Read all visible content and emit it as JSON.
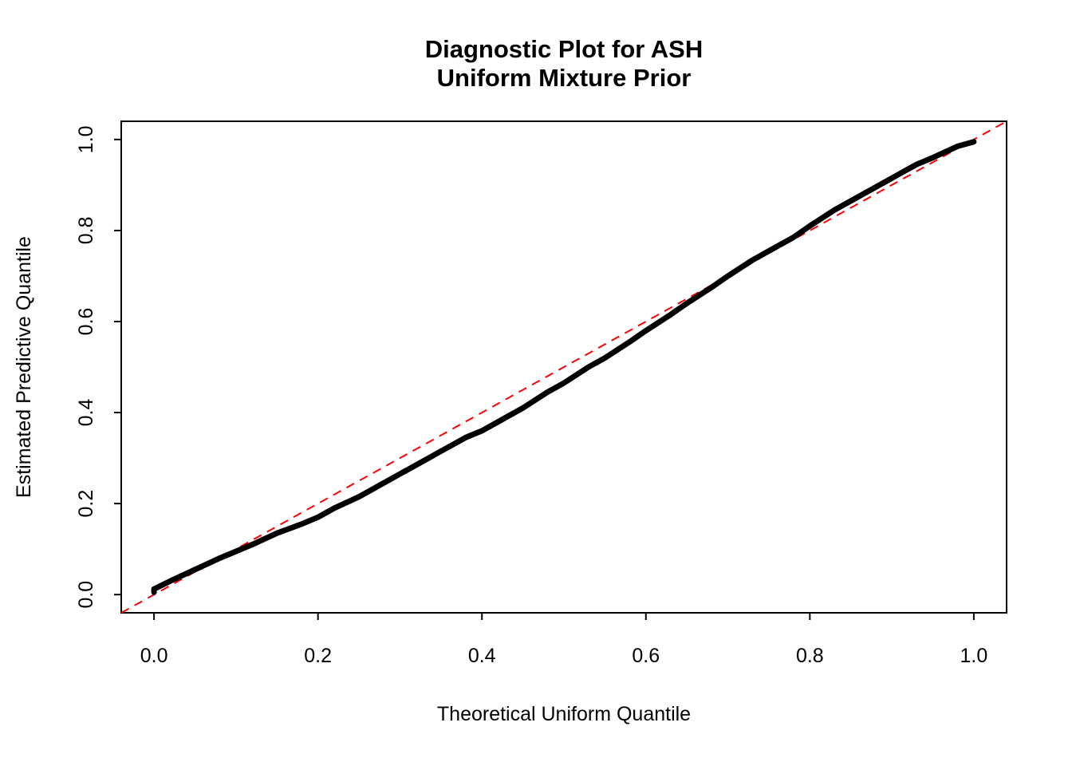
{
  "chart_data": {
    "type": "scatter",
    "title": "Diagnostic Plot for ASH",
    "subtitle": "Uniform Mixture Prior",
    "xlabel": "Theoretical Uniform Quantile",
    "ylabel": "Estimated Predictive Quantile",
    "xlim": [
      -0.04,
      1.04
    ],
    "ylim": [
      -0.04,
      1.04
    ],
    "x_ticks": [
      0.0,
      0.2,
      0.4,
      0.6,
      0.8,
      1.0
    ],
    "y_ticks": [
      0.0,
      0.2,
      0.4,
      0.6,
      0.8,
      1.0
    ],
    "x_tick_labels": [
      "0.0",
      "0.2",
      "0.4",
      "0.6",
      "0.8",
      "1.0"
    ],
    "y_tick_labels": [
      "0.0",
      "0.2",
      "0.4",
      "0.6",
      "0.8",
      "1.0"
    ],
    "grid": false,
    "legend": "none",
    "colors": {
      "points": "#000000",
      "reference_line": "#FF0000",
      "axis": "#000000",
      "background": "#FFFFFF"
    },
    "series": [
      {
        "name": "estimated-predictive-quantiles",
        "style": "thick-points-curve",
        "color": "#000000",
        "points": [
          [
            0.0,
            0.005
          ],
          [
            0.0,
            0.012
          ],
          [
            0.02,
            0.03
          ],
          [
            0.05,
            0.055
          ],
          [
            0.08,
            0.08
          ],
          [
            0.1,
            0.095
          ],
          [
            0.12,
            0.11
          ],
          [
            0.15,
            0.135
          ],
          [
            0.18,
            0.155
          ],
          [
            0.2,
            0.17
          ],
          [
            0.22,
            0.19
          ],
          [
            0.25,
            0.215
          ],
          [
            0.28,
            0.245
          ],
          [
            0.3,
            0.265
          ],
          [
            0.33,
            0.295
          ],
          [
            0.35,
            0.315
          ],
          [
            0.38,
            0.345
          ],
          [
            0.4,
            0.36
          ],
          [
            0.43,
            0.39
          ],
          [
            0.45,
            0.41
          ],
          [
            0.48,
            0.445
          ],
          [
            0.5,
            0.465
          ],
          [
            0.53,
            0.5
          ],
          [
            0.55,
            0.52
          ],
          [
            0.58,
            0.555
          ],
          [
            0.6,
            0.58
          ],
          [
            0.63,
            0.615
          ],
          [
            0.65,
            0.64
          ],
          [
            0.68,
            0.675
          ],
          [
            0.7,
            0.7
          ],
          [
            0.73,
            0.735
          ],
          [
            0.75,
            0.755
          ],
          [
            0.78,
            0.785
          ],
          [
            0.8,
            0.81
          ],
          [
            0.83,
            0.845
          ],
          [
            0.85,
            0.865
          ],
          [
            0.88,
            0.895
          ],
          [
            0.9,
            0.915
          ],
          [
            0.93,
            0.945
          ],
          [
            0.95,
            0.96
          ],
          [
            0.98,
            0.985
          ],
          [
            1.0,
            0.995
          ]
        ]
      },
      {
        "name": "reference-identity-line",
        "style": "dashed-line",
        "color": "#FF0000",
        "points": [
          [
            -0.04,
            -0.04
          ],
          [
            1.04,
            1.04
          ]
        ]
      }
    ]
  }
}
